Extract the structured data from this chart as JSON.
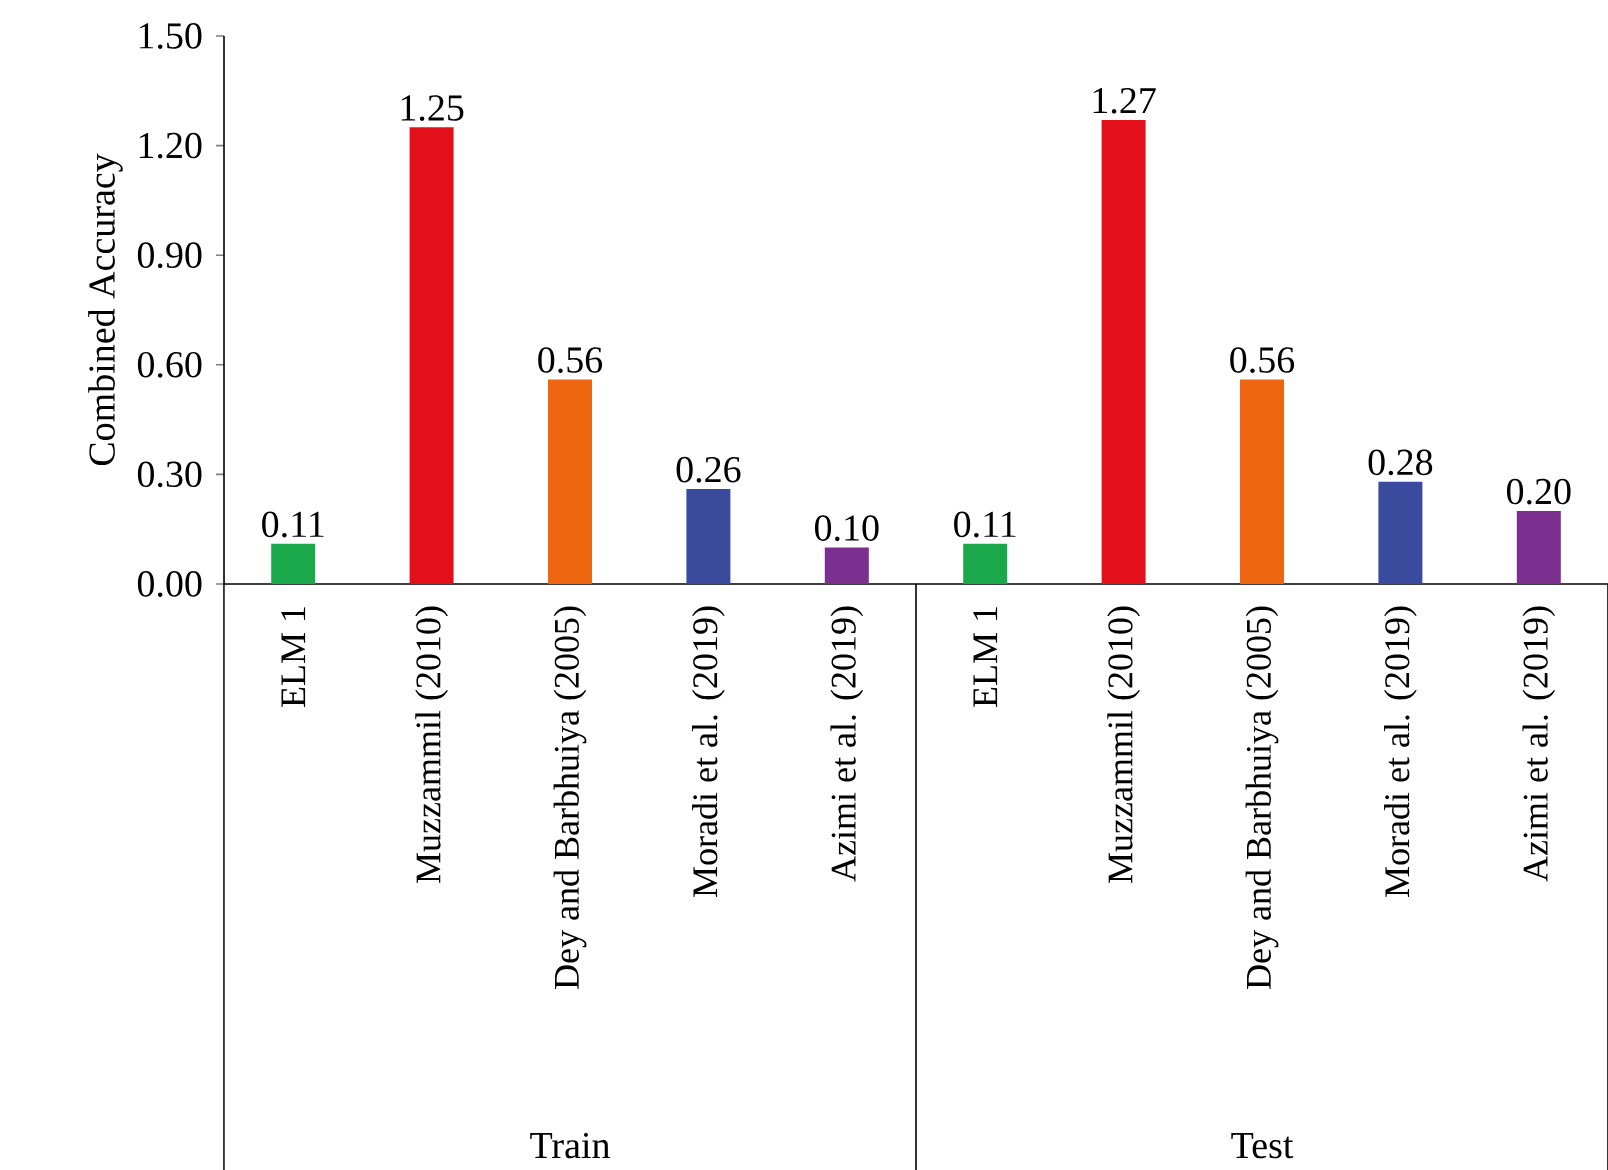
{
  "chart_data": {
    "type": "bar",
    "ylabel": "Combined Accuracy",
    "categories": [
      "ELM 1",
      "Muzzammil (2010)",
      "Dey and Barbhuiya (2005)",
      "Moradi et al. (2019)",
      "Azimi et al. (2019)",
      "ELM 1",
      "Muzzammil (2010)",
      "Dey and Barbhuiya (2005)",
      "Moradi et al. (2019)",
      "Azimi et al. (2019)"
    ],
    "values": [
      0.11,
      1.25,
      0.56,
      0.26,
      0.1,
      0.11,
      1.27,
      0.56,
      0.28,
      0.2
    ],
    "value_labels": [
      "0.11",
      "1.25",
      "0.56",
      "0.26",
      "0.10",
      "0.11",
      "1.27",
      "0.56",
      "0.28",
      "0.20"
    ],
    "colors": [
      "#1aa84a",
      "#e3101b",
      "#ef6610",
      "#3a4a9c",
      "#7b2f8e",
      "#1aa84a",
      "#e3101b",
      "#ef6610",
      "#3a4a9c",
      "#7b2f8e"
    ],
    "ylim": [
      0,
      1.5
    ],
    "yticks": [
      {
        "value": 0,
        "label": "0.00"
      },
      {
        "value": 0.3,
        "label": "0.30"
      },
      {
        "value": 0.6,
        "label": "0.60"
      },
      {
        "value": 0.9,
        "label": "0.90"
      },
      {
        "value": 1.2,
        "label": "1.20"
      },
      {
        "value": 1.5,
        "label": "1.50"
      }
    ],
    "annotations": [
      "Train",
      "Test"
    ],
    "grid": false
  }
}
